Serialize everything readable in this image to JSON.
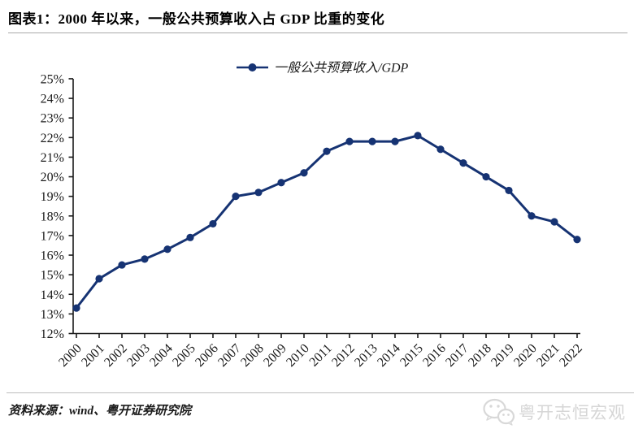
{
  "header": {
    "title": "图表1：2000 年以来，一般公共预算收入占 GDP 比重的变化"
  },
  "chart_data": {
    "type": "line",
    "legend_entries": [
      "一般公共预算收入/GDP"
    ],
    "legend_position": "top-center",
    "x": [
      "2000",
      "2001",
      "2002",
      "2003",
      "2004",
      "2005",
      "2006",
      "2007",
      "2008",
      "2009",
      "2010",
      "2011",
      "2012",
      "2013",
      "2014",
      "2015",
      "2016",
      "2017",
      "2018",
      "2019",
      "2020",
      "2021",
      "2022"
    ],
    "series": [
      {
        "name": "一般公共预算收入/GDP",
        "values": [
          13.3,
          14.8,
          15.5,
          15.8,
          16.3,
          16.9,
          17.6,
          19.0,
          19.2,
          19.7,
          20.2,
          21.3,
          21.8,
          21.8,
          21.8,
          22.1,
          21.4,
          20.7,
          20.0,
          19.3,
          18.0,
          17.7,
          16.8
        ]
      }
    ],
    "ylim": [
      12,
      25
    ],
    "ytick_step": 1,
    "ytick_suffix": "%",
    "grid": false,
    "marker": "circle",
    "line_color": "#163373",
    "axis_color": "#1a1a1a"
  },
  "footer": {
    "source": "资料来源：wind、粤开证券研究院",
    "watermark": {
      "icon": "wechat-icon",
      "text": "粤开志恒宏观"
    }
  }
}
